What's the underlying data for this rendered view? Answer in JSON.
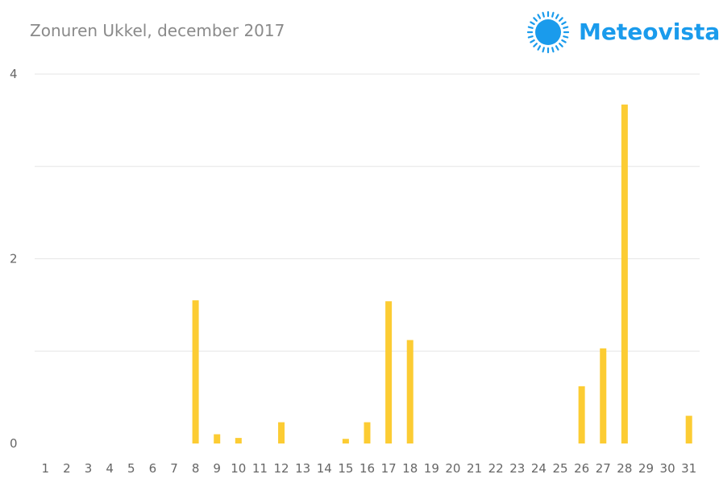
{
  "header": {
    "title": "Zonuren Ukkel, december 2017",
    "brand": "Meteovista",
    "brand_icon": "sun-icon",
    "brand_color": "#1a9bec"
  },
  "colors": {
    "bar": "#fccc33",
    "grid": "#e6e6e6"
  },
  "chart_data": {
    "type": "bar",
    "title": "Zonuren Ukkel, december 2017",
    "xlabel": "",
    "ylabel": "",
    "categories": [
      "1",
      "2",
      "3",
      "4",
      "5",
      "6",
      "7",
      "8",
      "9",
      "10",
      "11",
      "12",
      "13",
      "14",
      "15",
      "16",
      "17",
      "18",
      "19",
      "20",
      "21",
      "22",
      "23",
      "24",
      "25",
      "26",
      "27",
      "28",
      "29",
      "30",
      "31"
    ],
    "values": [
      0,
      0,
      0,
      0,
      0,
      0,
      0,
      1.55,
      0.1,
      0.06,
      0,
      0.23,
      0,
      0,
      0.05,
      0.23,
      1.54,
      1.12,
      0,
      0,
      0,
      0,
      0,
      0,
      0,
      0.62,
      1.03,
      3.67,
      0,
      0,
      0.3
    ],
    "ylim": [
      0,
      4
    ],
    "yticks": [
      0,
      2,
      4
    ],
    "grid_lines": [
      1,
      2,
      3,
      4
    ],
    "grid": true,
    "legend": "none"
  }
}
